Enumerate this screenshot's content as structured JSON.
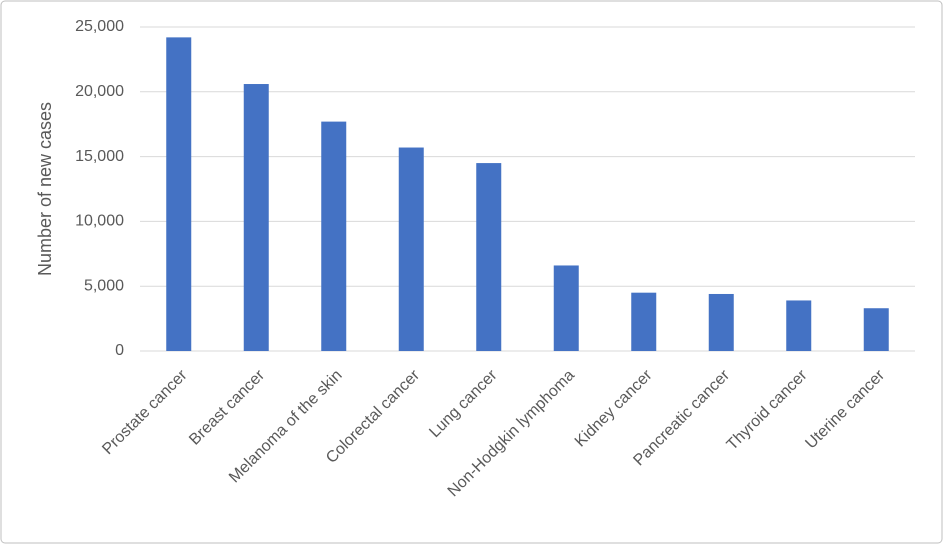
{
  "chart_data": {
    "type": "bar",
    "y_label": "Number of new cases",
    "categories": [
      "Prostate cancer",
      "Breast cancer",
      "Melanoma of the skin",
      "Colorectal cancer",
      "Lung cancer",
      "Non-Hodgkin lymphoma",
      "Kidney cancer",
      "Pancreatic cancer",
      "Thyroid cancer",
      "Uterine cancer"
    ],
    "values": [
      24200,
      20600,
      17700,
      15700,
      14500,
      6600,
      4500,
      4400,
      3900,
      3300
    ],
    "color": "#4472c4",
    "ylim": [
      0,
      25000
    ],
    "yticks": [
      0,
      {
        "value": 5000,
        "label": "5,000"
      },
      {
        "value": 10000,
        "label": "10,000"
      },
      {
        "value": 15000,
        "label": "15,000"
      },
      {
        "value": 20000,
        "label": "20,000"
      },
      {
        "value": 25000,
        "label": "25,000"
      }
    ],
    "grid": true
  }
}
